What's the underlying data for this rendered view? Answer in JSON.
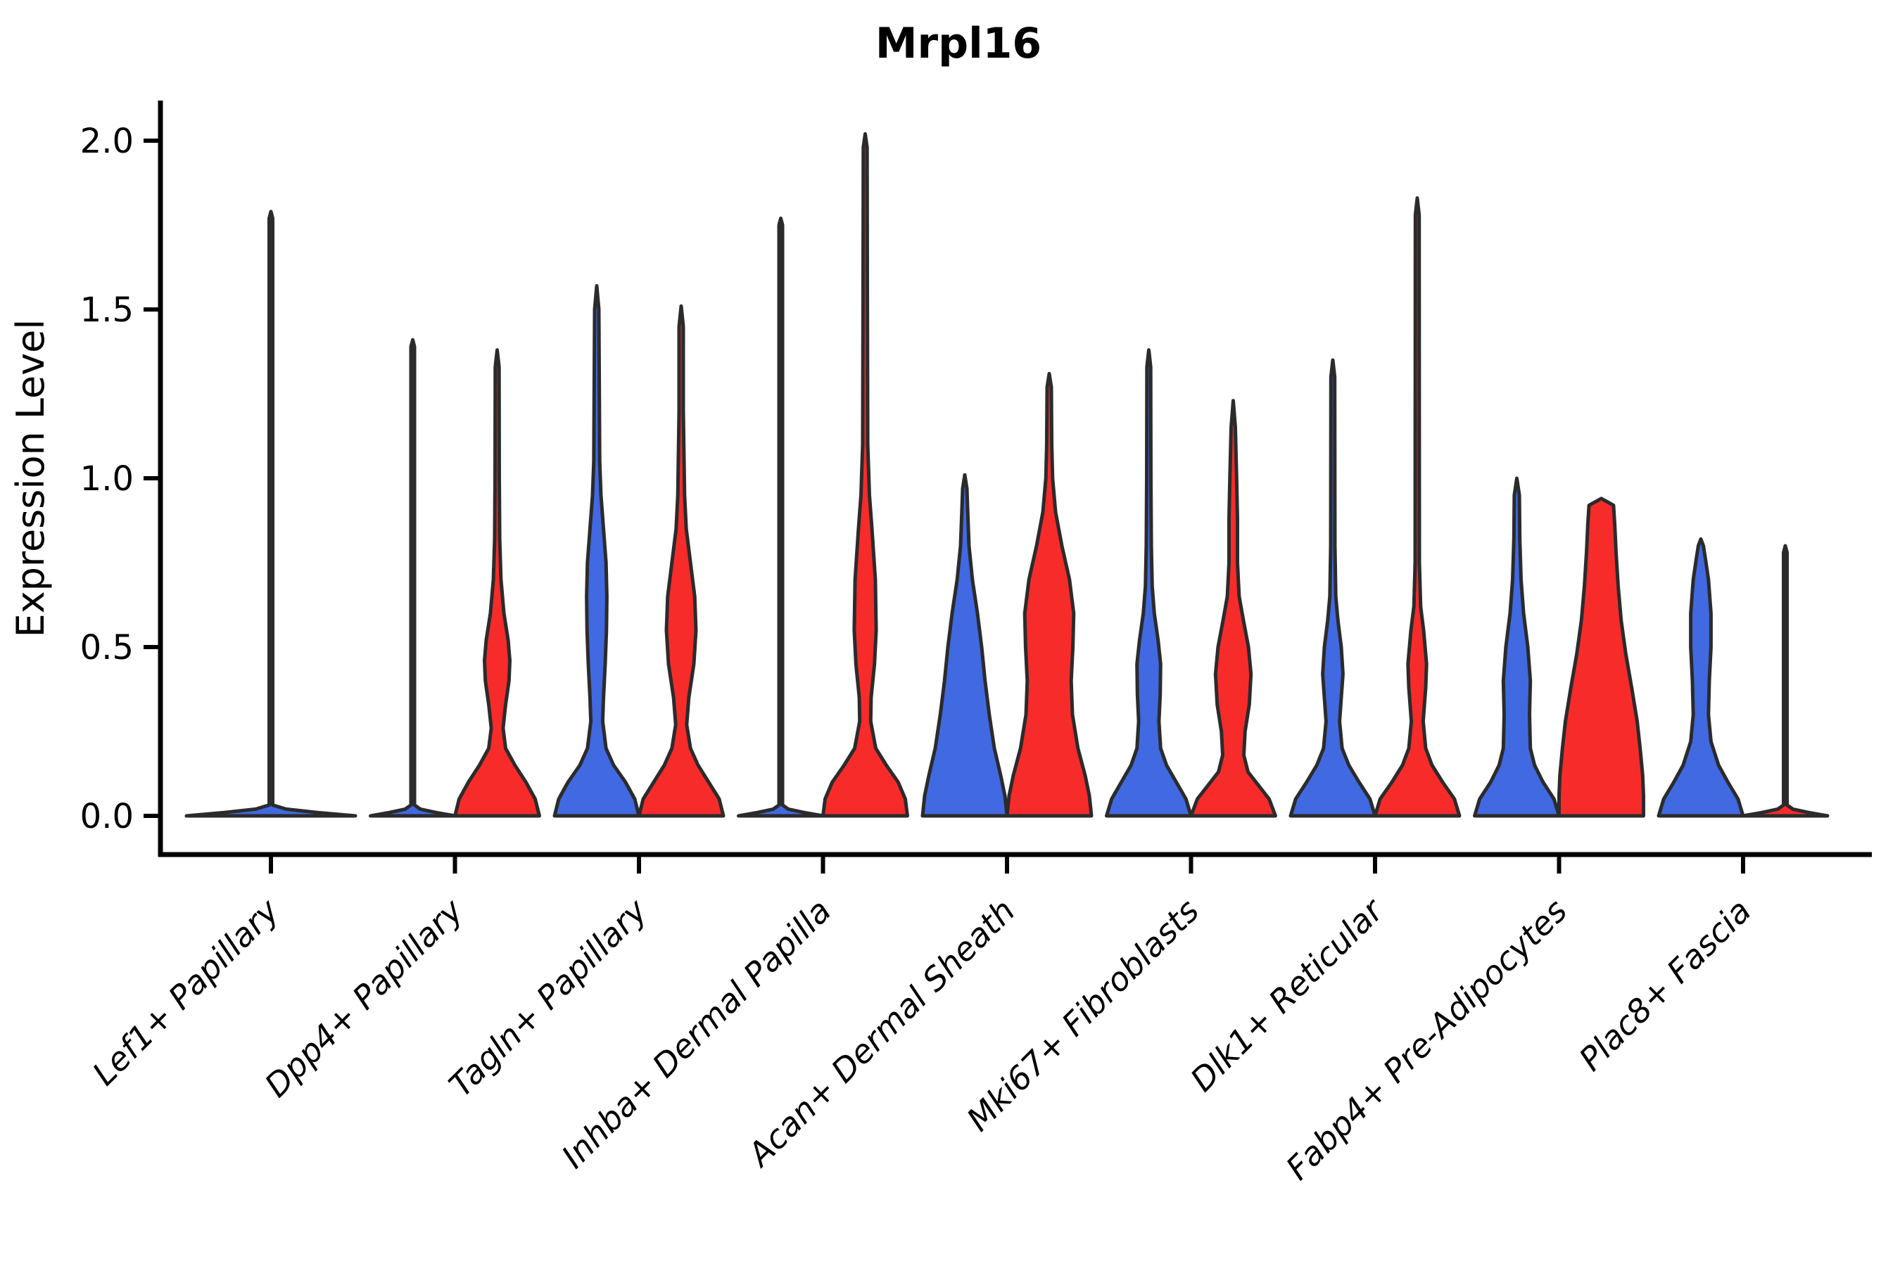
{
  "title": "Mrpl16",
  "chart_data": {
    "type": "violin",
    "title": "Mrpl16",
    "xlabel": "",
    "ylabel": "Expression Level",
    "ylim": [
      0,
      2.1
    ],
    "yticks": [
      0.0,
      0.5,
      1.0,
      1.5,
      2.0
    ],
    "ytick_labels": [
      "0.0",
      "0.5",
      "1.0",
      "1.5",
      "2.0"
    ],
    "grid": false,
    "legend": "none",
    "x_label_rotation_deg": 45,
    "split_violin_groups": 2,
    "colors": {
      "blue": "#4169E1",
      "red": "#F82B2B",
      "outline": "#2B2B2B"
    },
    "categories": [
      "Lef1+ Papillary",
      "Dpp4+ Papillary",
      "Tagln+ Papillary",
      "Inhba+ Dermal Papilla",
      "Acan+ Dermal Sheath",
      "Mki67+ Fibroblasts",
      "Dlk1+ Reticular",
      "Fabp4+ Pre-Adipocytes",
      "Plac8+ Fascia"
    ],
    "violins": [
      {
        "category_index": 0,
        "side": "full",
        "color": "blue",
        "max_expression": 1.79,
        "profile": [
          [
            0,
            1
          ],
          [
            0.01,
            0.55
          ],
          [
            0.02,
            0.18
          ],
          [
            0.032,
            0.021
          ],
          [
            1.77,
            0.021
          ],
          [
            1.79,
            0
          ]
        ]
      },
      {
        "category_index": 1,
        "side": "left",
        "color": "blue",
        "max_expression": 1.41,
        "profile": [
          [
            0,
            1
          ],
          [
            0.01,
            0.55
          ],
          [
            0.02,
            0.18
          ],
          [
            0.032,
            0.042
          ],
          [
            1.39,
            0.042
          ],
          [
            1.41,
            0
          ]
        ]
      },
      {
        "category_index": 1,
        "side": "right",
        "color": "red",
        "max_expression": 1.38,
        "profile": [
          [
            0,
            1
          ],
          [
            0.05,
            0.9
          ],
          [
            0.1,
            0.68
          ],
          [
            0.15,
            0.42
          ],
          [
            0.2,
            0.2
          ],
          [
            0.26,
            0.14
          ],
          [
            0.33,
            0.2
          ],
          [
            0.4,
            0.28
          ],
          [
            0.46,
            0.3
          ],
          [
            0.52,
            0.26
          ],
          [
            0.6,
            0.16
          ],
          [
            0.7,
            0.09
          ],
          [
            0.82,
            0.06
          ],
          [
            1.0,
            0.05
          ],
          [
            1.33,
            0.045
          ],
          [
            1.38,
            0
          ]
        ]
      },
      {
        "category_index": 2,
        "side": "left",
        "color": "blue",
        "max_expression": 1.57,
        "profile": [
          [
            0,
            1
          ],
          [
            0.05,
            0.9
          ],
          [
            0.1,
            0.68
          ],
          [
            0.15,
            0.4
          ],
          [
            0.2,
            0.22
          ],
          [
            0.28,
            0.14
          ],
          [
            0.35,
            0.16
          ],
          [
            0.45,
            0.2
          ],
          [
            0.55,
            0.23
          ],
          [
            0.65,
            0.24
          ],
          [
            0.75,
            0.22
          ],
          [
            0.85,
            0.16
          ],
          [
            0.95,
            0.1
          ],
          [
            1.05,
            0.07
          ],
          [
            1.5,
            0.05
          ],
          [
            1.57,
            0
          ]
        ]
      },
      {
        "category_index": 2,
        "side": "right",
        "color": "red",
        "max_expression": 1.51,
        "profile": [
          [
            0,
            1
          ],
          [
            0.05,
            0.9
          ],
          [
            0.1,
            0.65
          ],
          [
            0.15,
            0.4
          ],
          [
            0.2,
            0.22
          ],
          [
            0.27,
            0.13
          ],
          [
            0.35,
            0.18
          ],
          [
            0.45,
            0.3
          ],
          [
            0.55,
            0.35
          ],
          [
            0.65,
            0.32
          ],
          [
            0.75,
            0.22
          ],
          [
            0.85,
            0.12
          ],
          [
            0.95,
            0.08
          ],
          [
            1.2,
            0.05
          ],
          [
            1.45,
            0.05
          ],
          [
            1.51,
            0
          ]
        ]
      },
      {
        "category_index": 3,
        "side": "left",
        "color": "blue",
        "max_expression": 1.77,
        "profile": [
          [
            0,
            1
          ],
          [
            0.01,
            0.55
          ],
          [
            0.02,
            0.18
          ],
          [
            0.032,
            0.042
          ],
          [
            1.75,
            0.042
          ],
          [
            1.77,
            0
          ]
        ]
      },
      {
        "category_index": 3,
        "side": "right",
        "color": "red",
        "max_expression": 2.02,
        "profile": [
          [
            0,
            1
          ],
          [
            0.05,
            0.95
          ],
          [
            0.1,
            0.78
          ],
          [
            0.15,
            0.5
          ],
          [
            0.2,
            0.25
          ],
          [
            0.28,
            0.13
          ],
          [
            0.35,
            0.14
          ],
          [
            0.45,
            0.22
          ],
          [
            0.55,
            0.26
          ],
          [
            0.7,
            0.24
          ],
          [
            0.85,
            0.16
          ],
          [
            0.95,
            0.1
          ],
          [
            1.1,
            0.06
          ],
          [
            1.6,
            0.05
          ],
          [
            1.98,
            0.045
          ],
          [
            2.02,
            0
          ]
        ]
      },
      {
        "category_index": 4,
        "side": "left",
        "color": "blue",
        "max_expression": 1.01,
        "profile": [
          [
            0,
            1
          ],
          [
            0.06,
            0.95
          ],
          [
            0.12,
            0.85
          ],
          [
            0.2,
            0.7
          ],
          [
            0.3,
            0.58
          ],
          [
            0.4,
            0.48
          ],
          [
            0.5,
            0.4
          ],
          [
            0.6,
            0.3
          ],
          [
            0.7,
            0.18
          ],
          [
            0.8,
            0.1
          ],
          [
            0.9,
            0.07
          ],
          [
            0.97,
            0.05
          ],
          [
            1.01,
            0
          ]
        ]
      },
      {
        "category_index": 4,
        "side": "right",
        "color": "red",
        "max_expression": 1.31,
        "profile": [
          [
            0,
            1
          ],
          [
            0.06,
            0.95
          ],
          [
            0.12,
            0.85
          ],
          [
            0.2,
            0.68
          ],
          [
            0.3,
            0.55
          ],
          [
            0.4,
            0.52
          ],
          [
            0.5,
            0.56
          ],
          [
            0.6,
            0.58
          ],
          [
            0.7,
            0.48
          ],
          [
            0.8,
            0.3
          ],
          [
            0.9,
            0.15
          ],
          [
            1.0,
            0.08
          ],
          [
            1.1,
            0.06
          ],
          [
            1.27,
            0.05
          ],
          [
            1.31,
            0
          ]
        ]
      },
      {
        "category_index": 5,
        "side": "left",
        "color": "blue",
        "max_expression": 1.38,
        "profile": [
          [
            0,
            1
          ],
          [
            0.05,
            0.88
          ],
          [
            0.1,
            0.65
          ],
          [
            0.15,
            0.42
          ],
          [
            0.2,
            0.28
          ],
          [
            0.28,
            0.24
          ],
          [
            0.36,
            0.27
          ],
          [
            0.45,
            0.28
          ],
          [
            0.52,
            0.22
          ],
          [
            0.6,
            0.13
          ],
          [
            0.68,
            0.08
          ],
          [
            0.8,
            0.06
          ],
          [
            1.0,
            0.05
          ],
          [
            1.33,
            0.045
          ],
          [
            1.38,
            0
          ]
        ]
      },
      {
        "category_index": 5,
        "side": "right",
        "color": "red",
        "max_expression": 1.23,
        "profile": [
          [
            0,
            1
          ],
          [
            0.05,
            0.85
          ],
          [
            0.09,
            0.6
          ],
          [
            0.13,
            0.35
          ],
          [
            0.18,
            0.25
          ],
          [
            0.25,
            0.28
          ],
          [
            0.33,
            0.38
          ],
          [
            0.42,
            0.42
          ],
          [
            0.5,
            0.36
          ],
          [
            0.58,
            0.24
          ],
          [
            0.65,
            0.14
          ],
          [
            0.75,
            0.1
          ],
          [
            0.88,
            0.1
          ],
          [
            1.0,
            0.08
          ],
          [
            1.15,
            0.05
          ],
          [
            1.23,
            0
          ]
        ]
      },
      {
        "category_index": 6,
        "side": "left",
        "color": "blue",
        "max_expression": 1.35,
        "profile": [
          [
            0,
            1
          ],
          [
            0.05,
            0.88
          ],
          [
            0.1,
            0.62
          ],
          [
            0.15,
            0.38
          ],
          [
            0.2,
            0.22
          ],
          [
            0.28,
            0.16
          ],
          [
            0.35,
            0.2
          ],
          [
            0.42,
            0.24
          ],
          [
            0.5,
            0.2
          ],
          [
            0.58,
            0.12
          ],
          [
            0.65,
            0.07
          ],
          [
            0.8,
            0.05
          ],
          [
            1.3,
            0.045
          ],
          [
            1.35,
            0
          ]
        ]
      },
      {
        "category_index": 6,
        "side": "right",
        "color": "red",
        "max_expression": 1.83,
        "profile": [
          [
            0,
            1
          ],
          [
            0.05,
            0.88
          ],
          [
            0.1,
            0.6
          ],
          [
            0.15,
            0.35
          ],
          [
            0.2,
            0.2
          ],
          [
            0.28,
            0.14
          ],
          [
            0.38,
            0.2
          ],
          [
            0.45,
            0.22
          ],
          [
            0.55,
            0.15
          ],
          [
            0.62,
            0.08
          ],
          [
            0.75,
            0.05
          ],
          [
            1.78,
            0.045
          ],
          [
            1.83,
            0
          ]
        ]
      },
      {
        "category_index": 7,
        "side": "left",
        "color": "blue",
        "max_expression": 1.0,
        "profile": [
          [
            0,
            1
          ],
          [
            0.05,
            0.88
          ],
          [
            0.1,
            0.62
          ],
          [
            0.15,
            0.42
          ],
          [
            0.2,
            0.32
          ],
          [
            0.3,
            0.3
          ],
          [
            0.4,
            0.32
          ],
          [
            0.5,
            0.26
          ],
          [
            0.6,
            0.16
          ],
          [
            0.7,
            0.1
          ],
          [
            0.82,
            0.07
          ],
          [
            0.95,
            0.06
          ],
          [
            1.0,
            0
          ]
        ]
      },
      {
        "category_index": 7,
        "side": "right",
        "color": "red",
        "max_expression": 0.94,
        "profile": [
          [
            0,
            1
          ],
          [
            0.06,
            1.0
          ],
          [
            0.12,
            0.98
          ],
          [
            0.2,
            0.92
          ],
          [
            0.28,
            0.85
          ],
          [
            0.38,
            0.72
          ],
          [
            0.48,
            0.58
          ],
          [
            0.58,
            0.47
          ],
          [
            0.68,
            0.4
          ],
          [
            0.78,
            0.35
          ],
          [
            0.86,
            0.32
          ],
          [
            0.92,
            0.29
          ],
          [
            0.94,
            0
          ]
        ]
      },
      {
        "category_index": 8,
        "side": "left",
        "color": "blue",
        "max_expression": 0.82,
        "profile": [
          [
            0,
            1
          ],
          [
            0.05,
            0.88
          ],
          [
            0.1,
            0.64
          ],
          [
            0.15,
            0.42
          ],
          [
            0.22,
            0.24
          ],
          [
            0.3,
            0.18
          ],
          [
            0.4,
            0.2
          ],
          [
            0.5,
            0.24
          ],
          [
            0.6,
            0.24
          ],
          [
            0.7,
            0.18
          ],
          [
            0.76,
            0.11
          ],
          [
            0.8,
            0.06
          ],
          [
            0.82,
            0
          ]
        ]
      },
      {
        "category_index": 8,
        "side": "right",
        "color": "red",
        "max_expression": 0.8,
        "profile": [
          [
            0,
            1
          ],
          [
            0.01,
            0.55
          ],
          [
            0.02,
            0.18
          ],
          [
            0.032,
            0.042
          ],
          [
            0.78,
            0.042
          ],
          [
            0.8,
            0
          ]
        ]
      }
    ]
  }
}
